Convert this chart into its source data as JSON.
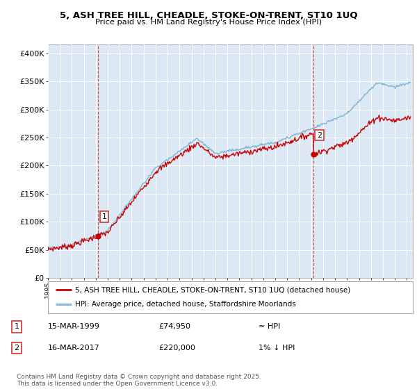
{
  "title": "5, ASH TREE HILL, CHEADLE, STOKE-ON-TRENT, ST10 1UQ",
  "subtitle": "Price paid vs. HM Land Registry's House Price Index (HPI)",
  "ylabel_ticks": [
    "£0",
    "£50K",
    "£100K",
    "£150K",
    "£200K",
    "£250K",
    "£300K",
    "£350K",
    "£400K"
  ],
  "ytick_values": [
    0,
    50000,
    100000,
    150000,
    200000,
    250000,
    300000,
    350000,
    400000
  ],
  "ylim": [
    0,
    415000
  ],
  "xlim_start": 1995.0,
  "xlim_end": 2025.5,
  "legend_line1": "5, ASH TREE HILL, CHEADLE, STOKE-ON-TRENT, ST10 1UQ (detached house)",
  "legend_line2": "HPI: Average price, detached house, Staffordshire Moorlands",
  "annotation1_label": "1",
  "annotation1_date": "15-MAR-1999",
  "annotation1_price": "£74,950",
  "annotation1_hpi": "≈ HPI",
  "annotation2_label": "2",
  "annotation2_date": "16-MAR-2017",
  "annotation2_price": "£220,000",
  "annotation2_hpi": "1% ↓ HPI",
  "footer": "Contains HM Land Registry data © Crown copyright and database right 2025.\nThis data is licensed under the Open Government Licence v3.0.",
  "price_line_color": "#cc0000",
  "hpi_line_color": "#7fb3d3",
  "marker1_x": 1999.2,
  "marker1_y": 74950,
  "marker2_x": 2017.2,
  "marker2_y": 220000,
  "background_color": "#ffffff",
  "plot_bg_color": "#dce9f5",
  "grid_color": "#ffffff",
  "vline_color": "#cc0000"
}
